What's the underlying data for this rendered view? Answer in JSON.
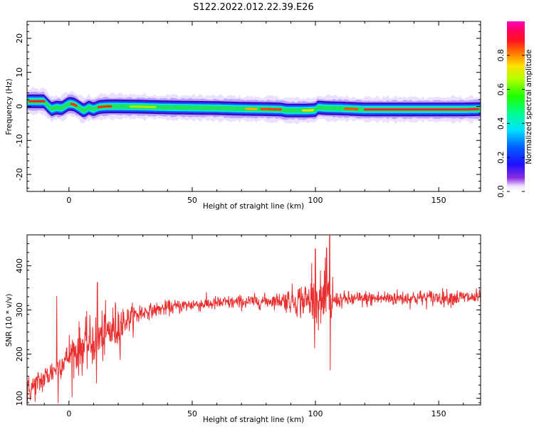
{
  "title": "S122.2022.012.22.39.E26",
  "colors": {
    "line": "#e83030",
    "axis": "#000000"
  },
  "chart_data": [
    {
      "type": "heatmap",
      "xlabel": "Height of straight line (km)",
      "ylabel": "Frequency (Hz)",
      "xlim": [
        -17,
        167
      ],
      "ylim": [
        -25,
        25
      ],
      "xticks": [
        0,
        50,
        100,
        150
      ],
      "yticks": [
        -20,
        -10,
        0,
        10,
        20
      ],
      "colorbar": {
        "label": "Normalized spectral amplitude",
        "range": [
          0.0,
          1.0
        ],
        "ticks": [
          "0.0",
          "0.2",
          "0.4",
          "0.6",
          "0.8"
        ],
        "colormap": "gist_rainbow-like (white/violet at 0, blue, cyan, green, yellow, orange, red, magenta at 1)"
      },
      "ridge": {
        "x": [
          -17,
          -10,
          -9,
          -7,
          -5,
          -3,
          0,
          2,
          4,
          6,
          8,
          10,
          12,
          15,
          20,
          30,
          40,
          50,
          60,
          70,
          80,
          86,
          88,
          92,
          96,
          100,
          101,
          104,
          110,
          120,
          130,
          140,
          150,
          160,
          166
        ],
        "frequency": [
          1.5,
          1.5,
          0.5,
          -0.8,
          -0.3,
          -0.6,
          0.8,
          0.6,
          -0.3,
          -1.3,
          -0.3,
          -0.9,
          -0.2,
          0.0,
          0.0,
          -0.1,
          -0.3,
          -0.4,
          -0.5,
          -0.7,
          -0.8,
          -0.9,
          -1.2,
          -1.2,
          -1.2,
          -1.1,
          -0.3,
          -0.5,
          -0.6,
          -0.9,
          -0.9,
          -0.9,
          -0.9,
          -0.9,
          -0.8
        ]
      }
    },
    {
      "type": "line",
      "xlabel": "Height of straight line (km)",
      "ylabel": "SNR (10 * v/v)",
      "xlim": [
        -17,
        167
      ],
      "ylim": [
        85,
        470
      ],
      "xticks": [
        0,
        50,
        100,
        150
      ],
      "yticks": [
        100,
        200,
        300,
        400
      ],
      "series": [
        {
          "name": "",
          "trend_x": [
            -17,
            -10,
            -5,
            0,
            5,
            10,
            15,
            20,
            25,
            30,
            40,
            50,
            60,
            70,
            80,
            85,
            90,
            95,
            100,
            105,
            107,
            110,
            120,
            130,
            140,
            150,
            160,
            167
          ],
          "trend_y": [
            115,
            145,
            170,
            195,
            215,
            230,
            245,
            265,
            282,
            295,
            305,
            312,
            315,
            318,
            320,
            322,
            322,
            322,
            320,
            318,
            322,
            323,
            325,
            327,
            327,
            328,
            328,
            328
          ],
          "spikes": [
            {
              "x": -5,
              "y": 331
            },
            {
              "x": -4.4,
              "y": 90
            },
            {
              "x": 11.5,
              "y": 362
            },
            {
              "x": 11.2,
              "y": 135
            },
            {
              "x": 98.5,
              "y": 405
            },
            {
              "x": 100,
              "y": 438
            },
            {
              "x": 104.5,
              "y": 440
            },
            {
              "x": 105.8,
              "y": 468
            },
            {
              "x": 106,
              "y": 164
            }
          ]
        }
      ]
    }
  ]
}
